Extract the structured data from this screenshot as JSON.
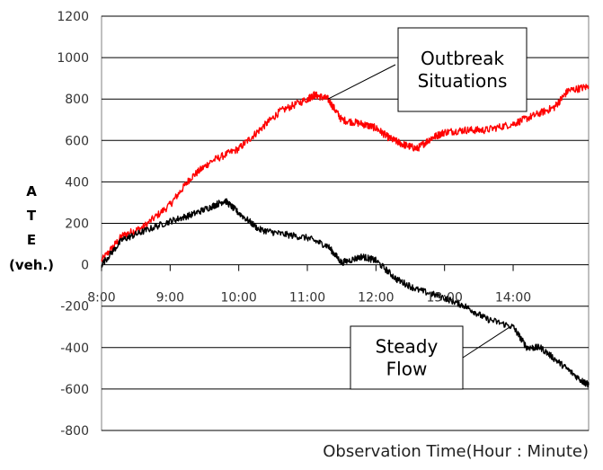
{
  "chart_data": {
    "type": "line",
    "title": "",
    "xlabel": "Observation Time(Hour : Minute)",
    "ylabel_lines": [
      "A",
      "T",
      "E",
      "(veh.)"
    ],
    "x_ticks": [
      "8:00",
      "9:00",
      "10:00",
      "11:00",
      "12:00",
      "13:00",
      "14:00"
    ],
    "x_range_hours": [
      8.0,
      15.1
    ],
    "y_ticks": [
      1200,
      1000,
      800,
      600,
      400,
      200,
      0,
      -200,
      -400,
      -600,
      -800
    ],
    "ylim": [
      -800,
      1200
    ],
    "grid": true,
    "series": [
      {
        "name": "Outbreak Situations",
        "color": "#ff0000",
        "x": [
          8.0,
          8.3,
          8.6,
          9.0,
          9.3,
          9.6,
          10.0,
          10.3,
          10.6,
          11.0,
          11.1,
          11.3,
          11.5,
          11.8,
          12.0,
          12.2,
          12.4,
          12.6,
          12.8,
          13.0,
          13.3,
          13.6,
          14.0,
          14.3,
          14.6,
          14.8,
          15.1
        ],
        "y": [
          20,
          140,
          180,
          290,
          420,
          500,
          560,
          650,
          740,
          800,
          820,
          800,
          700,
          680,
          660,
          610,
          580,
          560,
          610,
          640,
          650,
          650,
          680,
          720,
          760,
          840,
          860
        ],
        "noise": 18
      },
      {
        "name": "Steady Flow",
        "color": "#000000",
        "x": [
          8.0,
          8.3,
          8.6,
          9.0,
          9.3,
          9.6,
          9.8,
          10.0,
          10.3,
          10.6,
          11.0,
          11.3,
          11.5,
          11.8,
          12.0,
          12.3,
          12.6,
          13.0,
          13.3,
          13.6,
          14.0,
          14.2,
          14.4,
          14.7,
          15.0,
          15.1
        ],
        "y": [
          0,
          120,
          160,
          210,
          240,
          280,
          310,
          250,
          170,
          150,
          130,
          90,
          10,
          40,
          20,
          -70,
          -120,
          -160,
          -200,
          -260,
          -300,
          -400,
          -400,
          -480,
          -560,
          -580
        ],
        "noise": 16
      }
    ],
    "annotations": [
      {
        "lines": [
          "Outbreak",
          "Situations"
        ],
        "target_x": 11.3,
        "target_y": 800
      },
      {
        "lines": [
          "Steady",
          "Flow"
        ],
        "target_x": 14.0,
        "target_y": -290
      }
    ]
  }
}
